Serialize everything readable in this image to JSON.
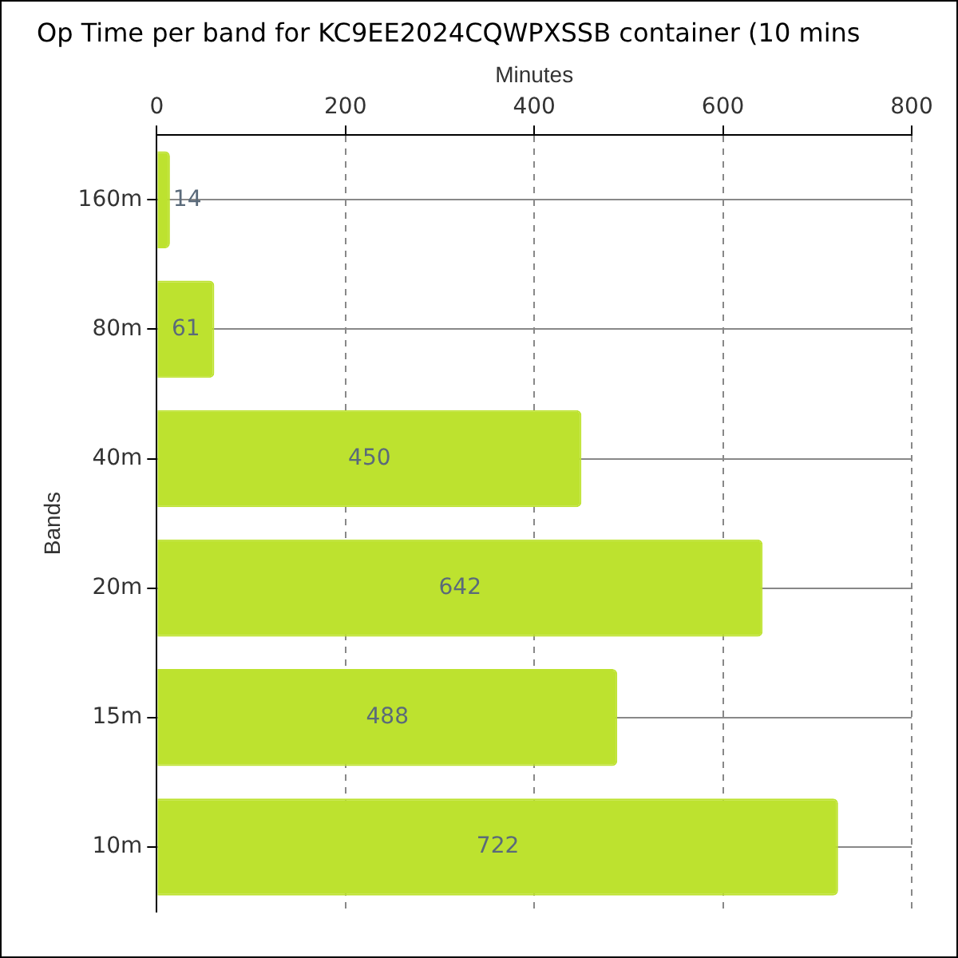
{
  "chart_data": {
    "type": "bar",
    "orientation": "horizontal",
    "title": "Op Time per band for KC9EE2024CQWPXSSB container (10 mins",
    "xlabel": "Minutes",
    "ylabel": "Bands",
    "categories": [
      "160m",
      "80m",
      "40m",
      "20m",
      "15m",
      "10m"
    ],
    "values": [
      14,
      61,
      450,
      642,
      488,
      722
    ],
    "color": "#bde22f",
    "xlim": [
      0,
      800
    ],
    "xticks": [
      0,
      200,
      400,
      600,
      800
    ],
    "grid": true,
    "data_labels": true,
    "legend": false
  }
}
